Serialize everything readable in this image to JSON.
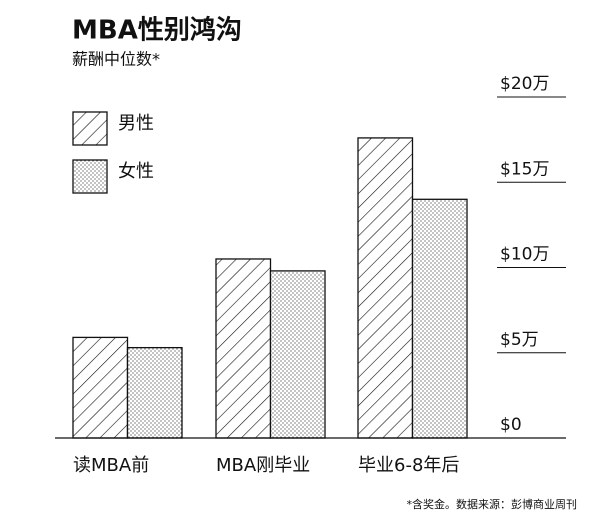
{
  "chart_data": {
    "type": "bar",
    "title": "MBA性别鸿沟",
    "subtitle": "薪酬中位数*",
    "categories": [
      "读MBA前",
      "MBA刚毕业",
      "毕业6-8年后"
    ],
    "series": [
      {
        "name": "男性",
        "color": "#111111",
        "pattern": "hatch",
        "values": [
          5.9,
          10.5,
          17.6
        ]
      },
      {
        "name": "女性",
        "color": "#111111",
        "pattern": "dots",
        "values": [
          5.3,
          9.8,
          14.0
        ]
      }
    ],
    "ylim": [
      0,
      20
    ],
    "yticks": [
      {
        "value": 0,
        "label": "$0"
      },
      {
        "value": 5,
        "label": "$5万"
      },
      {
        "value": 10,
        "label": "$10万"
      },
      {
        "value": 15,
        "label": "$15万"
      },
      {
        "value": 20,
        "label": "$20万"
      }
    ],
    "grid": true,
    "legend": "top-left",
    "footnote": "*含奖金。数据来源：彭博商业周刊"
  }
}
